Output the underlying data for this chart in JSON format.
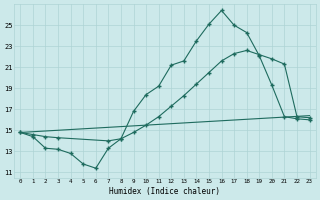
{
  "xlabel": "Humidex (Indice chaleur)",
  "bg_color": "#cce9ea",
  "line_color": "#1e6b5e",
  "grid_color": "#aed4d5",
  "xlim": [
    -0.5,
    23.5
  ],
  "ylim": [
    10.5,
    27
  ],
  "xticks": [
    0,
    1,
    2,
    3,
    4,
    5,
    6,
    7,
    8,
    9,
    10,
    11,
    12,
    13,
    14,
    15,
    16,
    17,
    18,
    19,
    20,
    21,
    22,
    23
  ],
  "yticks": [
    11,
    13,
    15,
    17,
    19,
    21,
    23,
    25
  ],
  "line1_x": [
    0,
    1,
    2,
    3,
    4,
    5,
    6,
    7,
    8,
    9,
    10,
    11,
    12,
    13,
    14,
    15,
    16,
    17,
    18,
    19,
    20,
    21,
    22,
    23
  ],
  "line1_y": [
    14.8,
    14.4,
    13.3,
    13.2,
    12.8,
    11.8,
    11.4,
    13.3,
    14.2,
    16.8,
    18.4,
    19.2,
    21.2,
    21.6,
    23.5,
    25.1,
    26.4,
    25.0,
    24.3,
    22.1,
    19.3,
    16.3,
    16.1,
    16.0
  ],
  "line2_x": [
    0,
    23
  ],
  "line2_y": [
    14.8,
    16.4
  ],
  "line3_x": [
    0,
    1,
    2,
    3,
    7,
    8,
    9,
    10,
    11,
    12,
    13,
    14,
    15,
    16,
    17,
    18,
    19,
    20,
    21,
    22,
    23
  ],
  "line3_y": [
    14.8,
    14.6,
    14.4,
    14.3,
    14.0,
    14.2,
    14.8,
    15.5,
    16.3,
    17.3,
    18.3,
    19.4,
    20.5,
    21.6,
    22.3,
    22.6,
    22.2,
    21.8,
    21.3,
    16.3,
    16.2
  ]
}
